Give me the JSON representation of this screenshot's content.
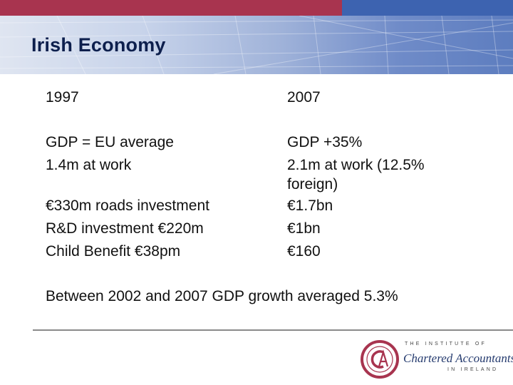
{
  "slide": {
    "title": "Irish Economy",
    "col1": {
      "year": "1997",
      "line1": "GDP = EU average",
      "line2": "1.4m at work",
      "line3": "€330m roads investment",
      "line4": "R&D investment €220m",
      "line5": "Child Benefit €38pm"
    },
    "col2": {
      "year": "2007",
      "line1": "GDP +35%",
      "line2": "2.1m at work (12.5%",
      "line2b": "foreign)",
      "line3": "€1.7bn",
      "line4": "€1bn",
      "line5": "€160"
    },
    "summary": "Between 2002 and 2007 GDP growth averaged 5.3%"
  },
  "footer": {
    "institute_top": "THE INSTITUTE OF",
    "institute_name": "Chartered Accountants",
    "institute_bottom": "IN IRELAND",
    "logo_icon": "ca-monogram-icon"
  },
  "colors": {
    "topbar_left": "#a8344f",
    "topbar_right": "#3d63b0",
    "title": "#0d1f4d",
    "logo": "#a8344f"
  }
}
